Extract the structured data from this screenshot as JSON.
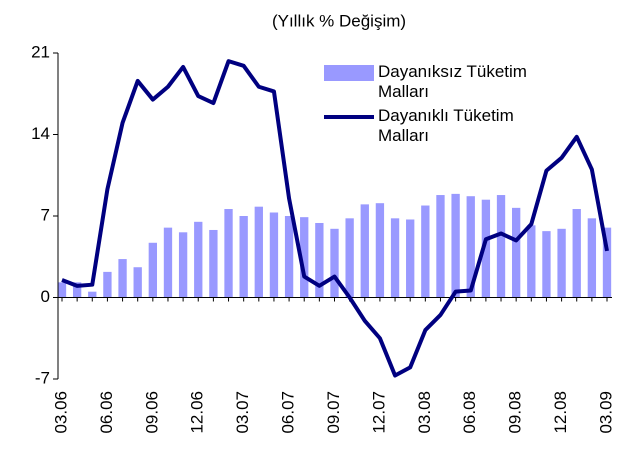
{
  "chart_data": {
    "type": "bar_line",
    "title": "(Yıllık % Değişim)",
    "categories": [
      "03.06",
      null,
      null,
      "06.06",
      null,
      null,
      "09.06",
      null,
      null,
      "12.06",
      null,
      null,
      "03.07",
      null,
      null,
      "06.07",
      null,
      null,
      "09.07",
      null,
      null,
      "12.07",
      null,
      null,
      "03.08",
      null,
      null,
      "06.08",
      null,
      null,
      "09.08",
      null,
      null,
      "12.08",
      null,
      null,
      "03.09"
    ],
    "series": [
      {
        "name": "Dayanıksız Tüketim Malları",
        "type": "bar",
        "color": "#9999ff",
        "values": [
          1.3,
          1.3,
          0.5,
          2.2,
          3.3,
          2.6,
          4.7,
          6.0,
          5.6,
          6.5,
          5.8,
          7.6,
          7.0,
          7.8,
          7.3,
          7.0,
          6.9,
          6.4,
          5.9,
          6.8,
          8.0,
          8.1,
          6.8,
          6.7,
          7.9,
          8.8,
          8.9,
          8.7,
          8.4,
          8.8,
          7.7,
          6.2,
          5.7,
          5.9,
          7.6,
          6.8,
          6.0
        ]
      },
      {
        "name": "Dayanıklı Tüketim Malları",
        "type": "line",
        "color": "#000080",
        "values": [
          1.5,
          1.0,
          1.1,
          9.3,
          15.0,
          18.6,
          17.0,
          18.1,
          19.8,
          17.3,
          16.7,
          20.3,
          19.9,
          18.1,
          17.7,
          8.5,
          1.8,
          1.0,
          1.8,
          0,
          -2.0,
          -3.5,
          -6.7,
          -6.0,
          -2.8,
          -1.5,
          0.5,
          0.6,
          5.0,
          5.5,
          4.9,
          6.3,
          10.9,
          12.0,
          13.8,
          11.0,
          4.0
        ]
      }
    ],
    "ylim": [
      -7,
      21
    ],
    "yticks": [
      -7,
      0,
      7,
      14,
      21
    ]
  }
}
